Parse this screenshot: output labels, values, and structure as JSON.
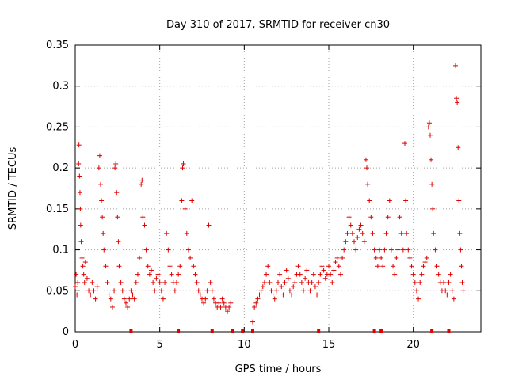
{
  "chart_data": {
    "type": "scatter",
    "title": "Day 310 of 2017, SRMTID for receiver cn30",
    "xlabel": "GPS time / hours",
    "ylabel": "SRMTID / TECUs",
    "xlim": [
      0,
      24
    ],
    "ylim": [
      0,
      0.35
    ],
    "xticks": [
      0,
      5,
      10,
      15,
      20
    ],
    "xtick_labels": [
      "0",
      "5",
      "10",
      "15",
      "20"
    ],
    "yticks": [
      0,
      0.05,
      0.1,
      0.15,
      0.2,
      0.25,
      0.3,
      0.35
    ],
    "ytick_labels": [
      "0",
      "0.05",
      "0.1",
      "0.15",
      "0.2",
      "0.25",
      "0.3",
      "0.35"
    ],
    "grid": true,
    "marker": "+",
    "color": "#e00000",
    "series": [
      {
        "name": "SRMTID",
        "points": [
          [
            0.0,
            0.055
          ],
          [
            0.05,
            0.07
          ],
          [
            0.1,
            0.045
          ],
          [
            0.15,
            0.06
          ],
          [
            0.2,
            0.205
          ],
          [
            0.22,
            0.228
          ],
          [
            0.25,
            0.19
          ],
          [
            0.28,
            0.17
          ],
          [
            0.3,
            0.15
          ],
          [
            0.32,
            0.13
          ],
          [
            0.35,
            0.11
          ],
          [
            0.4,
            0.09
          ],
          [
            0.45,
            0.08
          ],
          [
            0.5,
            0.07
          ],
          [
            0.55,
            0.06
          ],
          [
            0.6,
            0.085
          ],
          [
            0.7,
            0.065
          ],
          [
            0.8,
            0.05
          ],
          [
            0.9,
            0.045
          ],
          [
            1.0,
            0.06
          ],
          [
            1.1,
            0.05
          ],
          [
            1.2,
            0.04
          ],
          [
            1.3,
            0.055
          ],
          [
            1.4,
            0.2
          ],
          [
            1.45,
            0.215
          ],
          [
            1.5,
            0.18
          ],
          [
            1.55,
            0.16
          ],
          [
            1.6,
            0.14
          ],
          [
            1.65,
            0.12
          ],
          [
            1.7,
            0.1
          ],
          [
            1.8,
            0.08
          ],
          [
            1.9,
            0.06
          ],
          [
            2.0,
            0.045
          ],
          [
            2.1,
            0.04
          ],
          [
            2.2,
            0.03
          ],
          [
            2.3,
            0.05
          ],
          [
            2.35,
            0.2
          ],
          [
            2.4,
            0.205
          ],
          [
            2.45,
            0.17
          ],
          [
            2.5,
            0.14
          ],
          [
            2.55,
            0.11
          ],
          [
            2.6,
            0.08
          ],
          [
            2.7,
            0.06
          ],
          [
            2.8,
            0.05
          ],
          [
            2.9,
            0.04
          ],
          [
            3.0,
            0.035
          ],
          [
            3.1,
            0.03
          ],
          [
            3.2,
            0.04
          ],
          [
            3.3,
            0.05
          ],
          [
            3.4,
            0.045
          ],
          [
            3.5,
            0.04
          ],
          [
            3.6,
            0.06
          ],
          [
            3.7,
            0.07
          ],
          [
            3.8,
            0.09
          ],
          [
            3.9,
            0.18
          ],
          [
            3.95,
            0.185
          ],
          [
            4.0,
            0.14
          ],
          [
            4.1,
            0.13
          ],
          [
            4.2,
            0.1
          ],
          [
            4.3,
            0.08
          ],
          [
            4.4,
            0.07
          ],
          [
            4.5,
            0.075
          ],
          [
            4.6,
            0.06
          ],
          [
            4.7,
            0.05
          ],
          [
            4.8,
            0.065
          ],
          [
            4.9,
            0.07
          ],
          [
            5.0,
            0.06
          ],
          [
            5.1,
            0.05
          ],
          [
            5.2,
            0.04
          ],
          [
            5.3,
            0.06
          ],
          [
            5.4,
            0.12
          ],
          [
            5.5,
            0.1
          ],
          [
            5.6,
            0.08
          ],
          [
            5.7,
            0.07
          ],
          [
            5.8,
            0.06
          ],
          [
            5.9,
            0.05
          ],
          [
            6.0,
            0.06
          ],
          [
            6.1,
            0.07
          ],
          [
            6.2,
            0.08
          ],
          [
            6.3,
            0.16
          ],
          [
            6.35,
            0.2
          ],
          [
            6.4,
            0.205
          ],
          [
            6.5,
            0.15
          ],
          [
            6.6,
            0.12
          ],
          [
            6.7,
            0.1
          ],
          [
            6.8,
            0.09
          ],
          [
            6.9,
            0.16
          ],
          [
            7.0,
            0.08
          ],
          [
            7.1,
            0.07
          ],
          [
            7.2,
            0.06
          ],
          [
            7.3,
            0.05
          ],
          [
            7.4,
            0.045
          ],
          [
            7.5,
            0.04
          ],
          [
            7.6,
            0.035
          ],
          [
            7.7,
            0.04
          ],
          [
            7.8,
            0.05
          ],
          [
            7.9,
            0.13
          ],
          [
            8.0,
            0.06
          ],
          [
            8.1,
            0.05
          ],
          [
            8.2,
            0.04
          ],
          [
            8.3,
            0.035
          ],
          [
            8.4,
            0.03
          ],
          [
            8.5,
            0.035
          ],
          [
            8.6,
            0.03
          ],
          [
            8.7,
            0.04
          ],
          [
            8.8,
            0.035
          ],
          [
            8.9,
            0.03
          ],
          [
            9.0,
            0.025
          ],
          [
            9.1,
            0.03
          ],
          [
            9.2,
            0.035
          ],
          [
            10.5,
            0.012
          ],
          [
            10.6,
            0.03
          ],
          [
            10.7,
            0.035
          ],
          [
            10.8,
            0.04
          ],
          [
            10.9,
            0.045
          ],
          [
            11.0,
            0.05
          ],
          [
            11.1,
            0.055
          ],
          [
            11.2,
            0.06
          ],
          [
            11.3,
            0.07
          ],
          [
            11.4,
            0.08
          ],
          [
            11.5,
            0.06
          ],
          [
            11.6,
            0.05
          ],
          [
            11.7,
            0.045
          ],
          [
            11.8,
            0.04
          ],
          [
            11.9,
            0.05
          ],
          [
            12.0,
            0.06
          ],
          [
            12.1,
            0.07
          ],
          [
            12.2,
            0.055
          ],
          [
            12.3,
            0.045
          ],
          [
            12.4,
            0.06
          ],
          [
            12.5,
            0.075
          ],
          [
            12.6,
            0.065
          ],
          [
            12.7,
            0.05
          ],
          [
            12.8,
            0.045
          ],
          [
            12.9,
            0.055
          ],
          [
            13.0,
            0.06
          ],
          [
            13.1,
            0.07
          ],
          [
            13.2,
            0.08
          ],
          [
            13.3,
            0.07
          ],
          [
            13.4,
            0.06
          ],
          [
            13.5,
            0.05
          ],
          [
            13.6,
            0.065
          ],
          [
            13.7,
            0.075
          ],
          [
            13.8,
            0.06
          ],
          [
            13.9,
            0.05
          ],
          [
            14.0,
            0.06
          ],
          [
            14.1,
            0.07
          ],
          [
            14.2,
            0.055
          ],
          [
            14.3,
            0.045
          ],
          [
            14.4,
            0.06
          ],
          [
            14.5,
            0.07
          ],
          [
            14.6,
            0.08
          ],
          [
            14.7,
            0.075
          ],
          [
            14.8,
            0.065
          ],
          [
            14.9,
            0.07
          ],
          [
            15.0,
            0.08
          ],
          [
            15.1,
            0.07
          ],
          [
            15.2,
            0.06
          ],
          [
            15.3,
            0.075
          ],
          [
            15.4,
            0.085
          ],
          [
            15.5,
            0.09
          ],
          [
            15.6,
            0.08
          ],
          [
            15.7,
            0.07
          ],
          [
            15.8,
            0.09
          ],
          [
            15.9,
            0.1
          ],
          [
            16.0,
            0.11
          ],
          [
            16.1,
            0.12
          ],
          [
            16.2,
            0.14
          ],
          [
            16.3,
            0.13
          ],
          [
            16.4,
            0.12
          ],
          [
            16.5,
            0.11
          ],
          [
            16.6,
            0.1
          ],
          [
            16.7,
            0.115
          ],
          [
            16.8,
            0.125
          ],
          [
            16.9,
            0.13
          ],
          [
            17.0,
            0.12
          ],
          [
            17.1,
            0.11
          ],
          [
            17.2,
            0.21
          ],
          [
            17.25,
            0.2
          ],
          [
            17.3,
            0.18
          ],
          [
            17.4,
            0.16
          ],
          [
            17.5,
            0.14
          ],
          [
            17.6,
            0.12
          ],
          [
            17.7,
            0.1
          ],
          [
            17.8,
            0.09
          ],
          [
            17.9,
            0.08
          ],
          [
            18.0,
            0.1
          ],
          [
            18.1,
            0.09
          ],
          [
            18.2,
            0.08
          ],
          [
            18.3,
            0.1
          ],
          [
            18.4,
            0.12
          ],
          [
            18.5,
            0.14
          ],
          [
            18.6,
            0.16
          ],
          [
            18.7,
            0.1
          ],
          [
            18.8,
            0.08
          ],
          [
            18.9,
            0.07
          ],
          [
            19.0,
            0.09
          ],
          [
            19.1,
            0.1
          ],
          [
            19.2,
            0.14
          ],
          [
            19.3,
            0.12
          ],
          [
            19.4,
            0.1
          ],
          [
            19.5,
            0.23
          ],
          [
            19.55,
            0.16
          ],
          [
            19.6,
            0.12
          ],
          [
            19.7,
            0.1
          ],
          [
            19.8,
            0.09
          ],
          [
            19.9,
            0.08
          ],
          [
            20.0,
            0.07
          ],
          [
            20.1,
            0.06
          ],
          [
            20.2,
            0.05
          ],
          [
            20.3,
            0.04
          ],
          [
            20.4,
            0.06
          ],
          [
            20.5,
            0.07
          ],
          [
            20.6,
            0.08
          ],
          [
            20.7,
            0.085
          ],
          [
            20.8,
            0.09
          ],
          [
            20.9,
            0.25
          ],
          [
            20.95,
            0.255
          ],
          [
            21.0,
            0.24
          ],
          [
            21.05,
            0.21
          ],
          [
            21.1,
            0.18
          ],
          [
            21.15,
            0.15
          ],
          [
            21.2,
            0.12
          ],
          [
            21.3,
            0.1
          ],
          [
            21.4,
            0.08
          ],
          [
            21.5,
            0.07
          ],
          [
            21.6,
            0.06
          ],
          [
            21.7,
            0.05
          ],
          [
            21.8,
            0.06
          ],
          [
            21.9,
            0.05
          ],
          [
            22.0,
            0.045
          ],
          [
            22.1,
            0.06
          ],
          [
            22.2,
            0.07
          ],
          [
            22.3,
            0.05
          ],
          [
            22.4,
            0.04
          ],
          [
            22.5,
            0.325
          ],
          [
            22.55,
            0.285
          ],
          [
            22.6,
            0.28
          ],
          [
            22.65,
            0.225
          ],
          [
            22.7,
            0.16
          ],
          [
            22.75,
            0.12
          ],
          [
            22.8,
            0.1
          ],
          [
            22.85,
            0.08
          ],
          [
            22.9,
            0.06
          ],
          [
            22.95,
            0.05
          ]
        ]
      }
    ],
    "gap_markers": [
      3.3,
      6.1,
      8.1,
      9.3,
      9.9,
      10.5,
      14.4,
      17.7,
      18.1,
      21.1,
      22.1
    ]
  }
}
